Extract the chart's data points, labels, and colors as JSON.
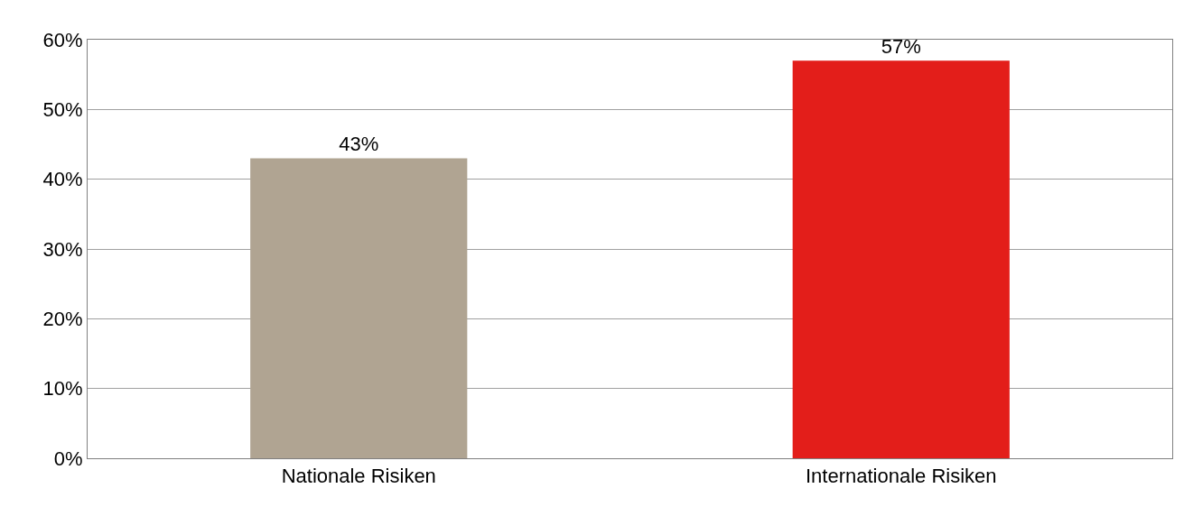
{
  "chart_data": {
    "type": "bar",
    "categories": [
      "Nationale Risiken",
      "Internationale Risiken"
    ],
    "values": [
      43,
      57
    ],
    "colors": [
      "#b0a492",
      "#e31e1a"
    ],
    "value_labels": [
      "43%",
      "57%"
    ],
    "ylim": [
      0,
      60
    ],
    "yticks": [
      {
        "value": 0,
        "label": "0%"
      },
      {
        "value": 10,
        "label": "10%"
      },
      {
        "value": 20,
        "label": "20%"
      },
      {
        "value": 30,
        "label": "30%"
      },
      {
        "value": 40,
        "label": "40%"
      },
      {
        "value": 50,
        "label": "50%"
      },
      {
        "value": 60,
        "label": "60%"
      }
    ],
    "grid": "y"
  }
}
